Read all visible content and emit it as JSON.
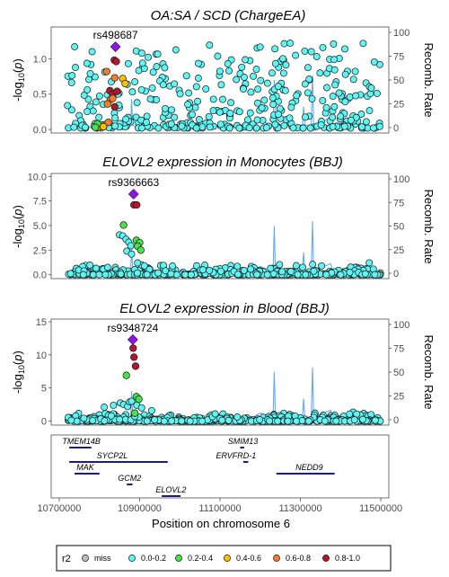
{
  "chart_data": {
    "type": "scatter",
    "x_axis": {
      "label": "Position on chromosome 6",
      "range": [
        10680000,
        11520000
      ],
      "ticks": [
        10700000,
        10900000,
        11100000,
        11300000,
        11500000
      ],
      "tick_labels": [
        "10700000",
        "10900000",
        "11100000",
        "11300000",
        "11500000"
      ]
    },
    "right_axis": {
      "label": "Recomb. Rate",
      "range": [
        0,
        100
      ],
      "ticks": [
        0,
        25,
        50,
        75,
        100
      ],
      "tick_labels": [
        "0",
        "25",
        "50",
        "75",
        "100"
      ]
    },
    "recomb_rate": {
      "positions": [
        10720000,
        10790000,
        10810000,
        10815000,
        10835000,
        10860000,
        10878000,
        10880000,
        10883000,
        10915000,
        10960000,
        11030000,
        11045000,
        11050000,
        11070000,
        11180000,
        11200000,
        11232000,
        11235000,
        11238000,
        11260000,
        11290000,
        11305000,
        11308000,
        11311000,
        11327000,
        11330000,
        11333000,
        11340000,
        11375000,
        11380000,
        11390000,
        11420000,
        11450000,
        11490000
      ],
      "rates": [
        0.5,
        1,
        5,
        1,
        3,
        1,
        2,
        30,
        2,
        1,
        1,
        1,
        6,
        1,
        2,
        2,
        7,
        2,
        50,
        2,
        4,
        2,
        3,
        22,
        3,
        2,
        55,
        2,
        4,
        10,
        3,
        5,
        3,
        2,
        1
      ]
    },
    "panels": [
      {
        "title": "OA:SA / SCD (ChargeEA)",
        "ylabel": "-log10(p)",
        "ylim": [
          -0.05,
          1.45
        ],
        "yticks": [
          0.0,
          0.5,
          1.0
        ],
        "ytick_labels": [
          "0.0",
          "0.5",
          "1.0"
        ],
        "lead_snp": "rs498687",
        "lead": [
          10840000,
          1.17
        ],
        "seed": 11,
        "groups": [
          {
            "r2": "0.8-1.0",
            "color": "#b2182b",
            "points": [
              [
                10837000,
                0.98
              ],
              [
                10842000,
                0.96
              ],
              [
                10826000,
                0.55
              ],
              [
                10833000,
                0.5
              ],
              [
                10844000,
                0.54
              ],
              [
                10838000,
                0.32
              ]
            ]
          },
          {
            "r2": "0.6-0.8",
            "color": "#f07f2d",
            "points": [
              [
                10818000,
                0.82
              ],
              [
                10838000,
                0.73
              ],
              [
                10827000,
                0.42
              ],
              [
                10833000,
                0.44
              ],
              [
                10820000,
                0.36
              ],
              [
                10822000,
                0.1
              ],
              [
                10805000,
                0.06
              ],
              [
                10797000,
                0.03
              ]
            ]
          },
          {
            "r2": "0.4-0.6",
            "color": "#ffc000",
            "points": [
              [
                10858000,
                0.72
              ],
              [
                10864000,
                0.65
              ],
              [
                10810000,
                0.04
              ]
            ]
          },
          {
            "r2": "0.2-0.4",
            "color": "#4ae04a",
            "points": [
              [
                10795000,
                0.08
              ],
              [
                10790000,
                0.03
              ]
            ]
          }
        ],
        "bg": {
          "n": 380,
          "peak": 1.12,
          "rate": 0.34,
          "cap": 1.22,
          "floor": 0.02
        }
      },
      {
        "title": "ELOVL2 expression in Monocytes (BBJ)",
        "ylabel": "-log10(p)",
        "ylim": [
          -0.4,
          10.3
        ],
        "yticks": [
          0.0,
          2.5,
          5.0,
          7.5,
          10.0
        ],
        "ytick_labels": [
          "0.0",
          "2.5",
          "5.0",
          "7.5",
          "10.0"
        ],
        "lead_snp": "rs9366663",
        "lead": [
          10885000,
          8.2
        ],
        "seed": 23,
        "groups": [
          {
            "r2": "0.8-1.0",
            "color": "#b2182b",
            "points": [
              [
                10886000,
                7.1
              ],
              [
                10893000,
                7.1
              ]
            ]
          },
          {
            "r2": "0.6-0.8",
            "color": "#f07f2d",
            "points": []
          },
          {
            "r2": "0.4-0.6",
            "color": "#ffc000",
            "points": []
          },
          {
            "r2": "0.2-0.4",
            "color": "#4ae04a",
            "points": [
              [
                10860000,
                5.05
              ],
              [
                10892000,
                3.5
              ],
              [
                10900000,
                3.25
              ],
              [
                10895000,
                2.9
              ],
              [
                10903000,
                2.5
              ]
            ]
          }
        ],
        "bg": {
          "n": 430,
          "peak": 1.3,
          "rate": 0.3,
          "cap": 1.8,
          "floor": 0.0,
          "near": [
            [
              10850000,
              4.05
            ],
            [
              10858000,
              3.95
            ],
            [
              10866000,
              3.6
            ],
            [
              10873000,
              3.3
            ],
            [
              10878000,
              2.95
            ],
            [
              10868000,
              2.4
            ],
            [
              10880000,
              2.1
            ],
            [
              10905000,
              1.0
            ],
            [
              10912000,
              0.9
            ],
            [
              10895000,
              1.2
            ]
          ]
        }
      },
      {
        "title": "ELOVL2 expression in Blood (BBJ)",
        "ylabel": "-log10(p)",
        "ylim": [
          -0.6,
          15.4
        ],
        "yticks": [
          0,
          5,
          10,
          15
        ],
        "ytick_labels": [
          "0",
          "5",
          "10",
          "15"
        ],
        "lead_snp": "rs9348724",
        "lead": [
          10883000,
          12.3
        ],
        "seed": 37,
        "groups": [
          {
            "r2": "0.8-1.0",
            "color": "#b2182b",
            "points": [
              [
                10884000,
                11.0
              ],
              [
                10886000,
                9.65
              ],
              [
                10890000,
                8.3
              ]
            ]
          },
          {
            "r2": "0.6-0.8",
            "color": "#f07f2d",
            "points": []
          },
          {
            "r2": "0.4-0.6",
            "color": "#ffc000",
            "points": []
          },
          {
            "r2": "0.2-0.4",
            "color": "#4ae04a",
            "points": [
              [
                10867000,
                6.9
              ],
              [
                10892000,
                3.7
              ],
              [
                10898000,
                3.3
              ],
              [
                10888000,
                1.2
              ]
            ]
          }
        ],
        "bg": {
          "n": 460,
          "peak": 1.5,
          "rate": 0.32,
          "cap": 2.3,
          "floor": 0.0,
          "near": [
            [
              10835000,
              2.4
            ],
            [
              10852000,
              2.75
            ],
            [
              10860000,
              2.5
            ],
            [
              10870000,
              2.2
            ],
            [
              10875000,
              2.9
            ],
            [
              10880000,
              3.0
            ],
            [
              10893000,
              2.4
            ],
            [
              10905000,
              2.0
            ],
            [
              10812000,
              2.1
            ],
            [
              10930000,
              1.6
            ]
          ]
        }
      }
    ],
    "genes": [
      {
        "name": "TMEM14B",
        "start": 10725000,
        "end": 10780000,
        "row": 0,
        "label_x": 10755000
      },
      {
        "name": "SYCP2L",
        "start": 10725000,
        "end": 10970000,
        "row": 1,
        "label_x": 10832000
      },
      {
        "name": "MAK",
        "start": 10738000,
        "end": 10800000,
        "row": 2,
        "label_x": 10765000
      },
      {
        "name": "GCM2",
        "start": 10868000,
        "end": 10882000,
        "row": 3,
        "label_x": 10875000
      },
      {
        "name": "ELOVL2",
        "start": 10955000,
        "end": 11002000,
        "row": 4,
        "label_x": 10978000
      },
      {
        "name": "SMIM13",
        "start": 11150000,
        "end": 11160000,
        "row": 0,
        "label_x": 11157000
      },
      {
        "name": "ERVFRD-1",
        "start": 11158000,
        "end": 11170000,
        "row": 1,
        "label_x": 11140000
      },
      {
        "name": "NEDD9",
        "start": 11240000,
        "end": 11385000,
        "row": 2,
        "label_x": 11322000
      }
    ],
    "legend": {
      "title": "r2",
      "entries": [
        {
          "label": "miss",
          "color": "#bebebe"
        },
        {
          "label": "0.0-0.2",
          "color": "#5ef5f5"
        },
        {
          "label": "0.2-0.4",
          "color": "#4ae04a"
        },
        {
          "label": "0.4-0.6",
          "color": "#ffc000"
        },
        {
          "label": "0.6-0.8",
          "color": "#f07f2d"
        },
        {
          "label": "0.8-1.0",
          "color": "#b2182b"
        }
      ]
    },
    "colors": {
      "background_points": "#5ef5f5",
      "lead": "#8b16e0",
      "recomb_line": "#64a9f0",
      "gene": "#1a1a8c"
    }
  }
}
